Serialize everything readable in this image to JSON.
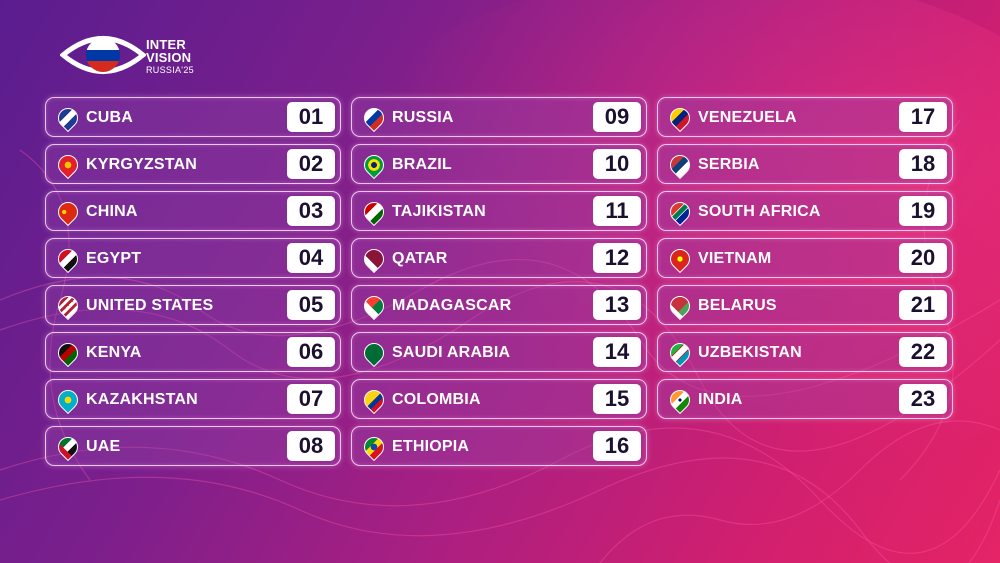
{
  "logo": {
    "line1": "INTER",
    "line2": "VISION",
    "line3": "RUSSIA'25"
  },
  "columns": [
    [
      {
        "country": "CUBA",
        "number": "01",
        "flag": "linear-gradient(#1f3a93 33%,#fff 33%,#fff 66%,#1f3a93 66%)"
      },
      {
        "country": "KYRGYZSTAN",
        "number": "02",
        "flag": "radial-gradient(circle,#f2c200 25%,#e0202a 27%)"
      },
      {
        "country": "CHINA",
        "number": "03",
        "flag": "radial-gradient(circle at 35% 35%,#ffd400 12%,#de2910 14%)"
      },
      {
        "country": "EGYPT",
        "number": "04",
        "flag": "linear-gradient(#ce1126 33%,#fff 33%,#fff 66%,#111 66%)"
      },
      {
        "country": "UNITED STATES",
        "number": "05",
        "flag": "repeating-linear-gradient(#b22234 0 3px,#fff 3px 6px)"
      },
      {
        "country": "KENYA",
        "number": "06",
        "flag": "linear-gradient(#111 33%,#bb0000 33%,#bb0000 66%,#006600 66%)"
      },
      {
        "country": "KAZAKHSTAN",
        "number": "07",
        "flag": "radial-gradient(circle,#ffd700 25%,#00afca 27%)"
      },
      {
        "country": "UAE",
        "number": "08",
        "flag": "linear-gradient(90deg,#ce1126 30%,transparent 30%),linear-gradient(#00732f 33%,#fff 33%,#fff 66%,#111 66%)"
      }
    ],
    [
      {
        "country": "RUSSIA",
        "number": "09",
        "flag": "linear-gradient(#fff 33%,#0039a6 33%,#0039a6 66%,#d52b1e 66%)"
      },
      {
        "country": "BRAZIL",
        "number": "10",
        "flag": "radial-gradient(circle,#002776 22%,#ffdf00 24%,#ffdf00 45%,#009c3b 47%)"
      },
      {
        "country": "TAJIKISTAN",
        "number": "11",
        "flag": "linear-gradient(#cc0000 30%,#fff 30%,#fff 70%,#006600 70%)"
      },
      {
        "country": "QATAR",
        "number": "12",
        "flag": "linear-gradient(90deg,#fff 30%,#8a1538 30%)"
      },
      {
        "country": "MADAGASCAR",
        "number": "13",
        "flag": "linear-gradient(90deg,#fff 35%,transparent 35%),linear-gradient(#fc3d32 50%,#007e3a 50%)"
      },
      {
        "country": "SAUDI ARABIA",
        "number": "14",
        "flag": "linear-gradient(#006c35,#006c35)"
      },
      {
        "country": "COLOMBIA",
        "number": "15",
        "flag": "linear-gradient(#fcd116 50%,#003893 50%,#003893 75%,#ce1126 75%)"
      },
      {
        "country": "ETHIOPIA",
        "number": "16",
        "flag": "radial-gradient(circle,#0f47af 25%,transparent 27%),linear-gradient(#078930 33%,#fcdd09 33%,#fcdd09 66%,#da121a 66%)"
      }
    ],
    [
      {
        "country": "VENEZUELA",
        "number": "17",
        "flag": "linear-gradient(#ffcc00 33%,#00247d 33%,#00247d 66%,#cf142b 66%)"
      },
      {
        "country": "SERBIA",
        "number": "18",
        "flag": "linear-gradient(#c6363c 33%,#0c4076 33%,#0c4076 66%,#fff 66%)"
      },
      {
        "country": "SOUTH AFRICA",
        "number": "19",
        "flag": "linear-gradient(#de3831 33%,#fff 33%,#fff 38%,#007a4d 38%,#007a4d 62%,#fff 62%,#fff 67%,#002395 67%)"
      },
      {
        "country": "VIETNAM",
        "number": "20",
        "flag": "radial-gradient(circle,#ffff00 20%,#da251d 22%)"
      },
      {
        "country": "BELARUS",
        "number": "21",
        "flag": "linear-gradient(90deg,#fff 20%,transparent 20%),linear-gradient(#c8313e 66%,#4aa657 66%)"
      },
      {
        "country": "UZBEKISTAN",
        "number": "22",
        "flag": "linear-gradient(#1eb53a 0 30%,#ce1126 30% 34%,#fff 34% 66%,#ce1126 66% 70%,#0099b5 70%)"
      },
      {
        "country": "INDIA",
        "number": "23",
        "flag": "radial-gradient(circle,#000080 12%,transparent 14%),linear-gradient(#ff9933 33%,#fff 33%,#fff 66%,#138808 66%)"
      }
    ]
  ]
}
